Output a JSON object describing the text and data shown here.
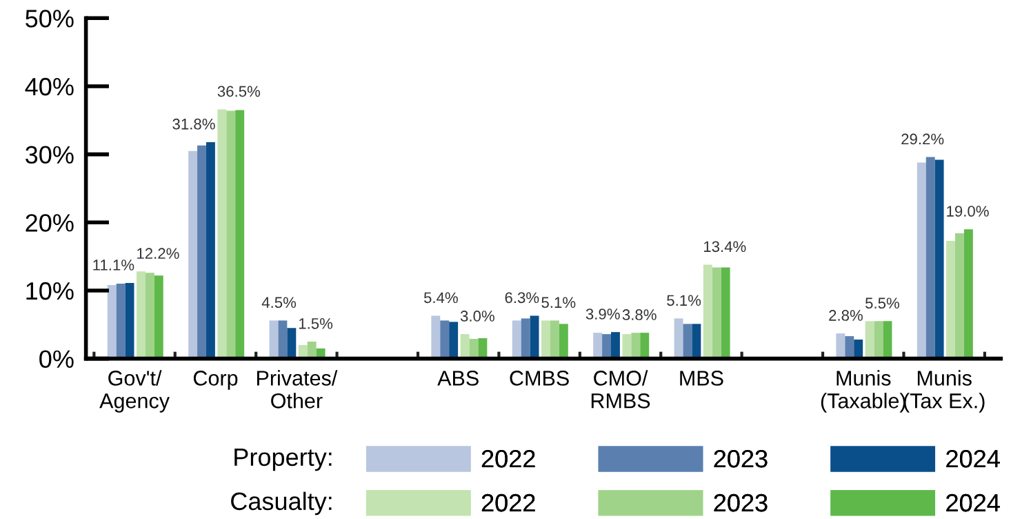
{
  "chart_data": {
    "type": "bar",
    "categories": [
      "Gov't/\nAgency",
      "Corp",
      "Privates/\nOther",
      null,
      "ABS",
      "CMBS",
      "CMO/\nRMBS",
      "MBS",
      null,
      "Munis\n(Taxable)",
      "Munis\n(Tax Ex.)"
    ],
    "series": [
      {
        "name": "2022",
        "color": "#b9c6e0",
        "values": [
          10.8,
          30.5,
          5.6,
          null,
          6.3,
          5.6,
          3.8,
          5.9,
          null,
          3.7,
          28.8
        ]
      },
      {
        "name": "2023",
        "color": "#5b80b0",
        "values": [
          11.0,
          31.3,
          5.6,
          null,
          5.6,
          5.9,
          3.6,
          5.1,
          null,
          3.3,
          29.6
        ]
      },
      {
        "name": "2024",
        "color": "#0a4f8a",
        "values": [
          11.1,
          31.8,
          4.5,
          null,
          5.4,
          6.3,
          3.9,
          5.1,
          null,
          2.8,
          29.2
        ],
        "value_labels": [
          "11.1%",
          "31.8%",
          "4.5%",
          null,
          "5.4%",
          "6.3%",
          "3.9%",
          "5.1%",
          null,
          "2.8%",
          "29.2%"
        ]
      },
      {
        "name": "2022",
        "color": "#c3e3b0",
        "values": [
          12.8,
          36.6,
          2.0,
          null,
          3.6,
          5.6,
          3.6,
          13.8,
          null,
          5.5,
          17.3
        ]
      },
      {
        "name": "2023",
        "color": "#a0d38a",
        "values": [
          12.6,
          36.4,
          2.5,
          null,
          2.9,
          5.6,
          3.8,
          13.4,
          null,
          5.5,
          18.4
        ]
      },
      {
        "name": "2024",
        "color": "#5eb94a",
        "values": [
          12.2,
          36.5,
          1.5,
          null,
          3.0,
          5.1,
          3.8,
          13.4,
          null,
          5.5,
          19.0
        ],
        "value_labels": [
          "12.2%",
          "36.5%",
          "1.5%",
          null,
          "3.0%",
          "5.1%",
          "3.8%",
          "13.4%",
          null,
          "5.5%",
          "19.0%"
        ]
      }
    ],
    "ylim": [
      0,
      50
    ],
    "yticks": [
      {
        "value": 0,
        "label": "0%"
      },
      {
        "value": 10,
        "label": "10%"
      },
      {
        "value": 20,
        "label": "20%"
      },
      {
        "value": 30,
        "label": "30%"
      },
      {
        "value": 40,
        "label": "40%"
      },
      {
        "value": 50,
        "label": "50%"
      }
    ],
    "annotations": [
      "Property:",
      "Casualty:"
    ],
    "legend": "bottom",
    "grid": false
  }
}
